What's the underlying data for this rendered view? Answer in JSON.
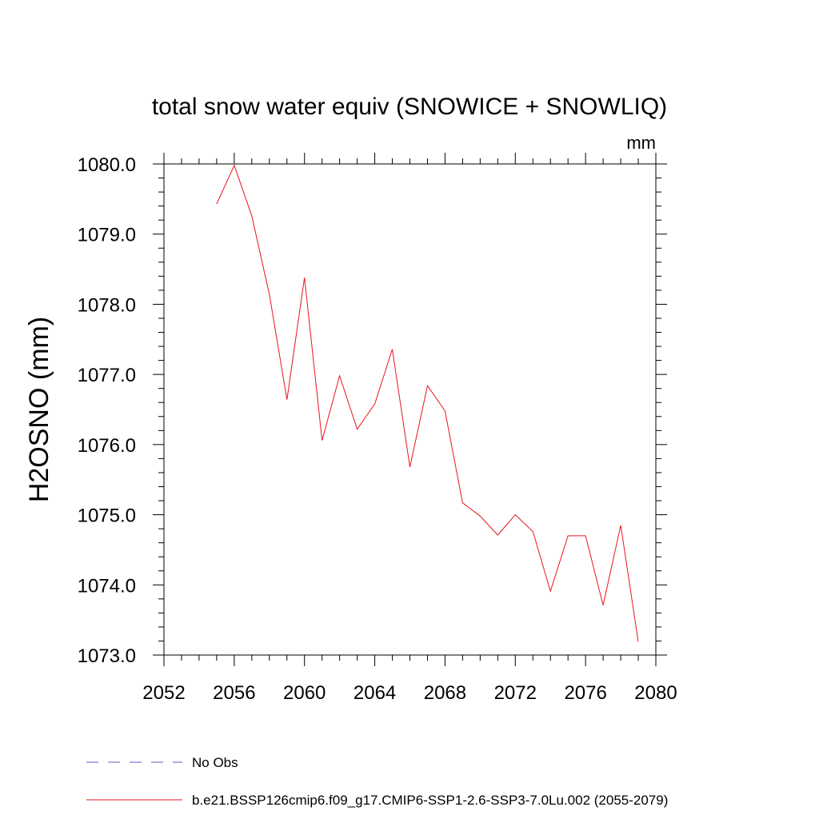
{
  "chart_data": {
    "type": "line",
    "title": "total snow water equiv (SNOWICE + SNOWLIQ)",
    "units_label": "mm",
    "ylabel": "H2OSNO  (mm)",
    "xlabel": "",
    "xlim": [
      2052,
      2080
    ],
    "ylim": [
      1073.0,
      1080.0
    ],
    "x_ticks": [
      2052,
      2056,
      2060,
      2064,
      2068,
      2072,
      2076,
      2080
    ],
    "x_tick_labels": [
      "2052",
      "2056",
      "2060",
      "2064",
      "2068",
      "2072",
      "2076",
      "2080"
    ],
    "y_ticks": [
      1073.0,
      1074.0,
      1075.0,
      1076.0,
      1077.0,
      1078.0,
      1079.0,
      1080.0
    ],
    "y_tick_labels": [
      "1073.0",
      "1074.0",
      "1075.0",
      "1076.0",
      "1077.0",
      "1078.0",
      "1079.0",
      "1080.0"
    ],
    "grid": false,
    "series": [
      {
        "name": "b.e21.BSSP126cmip6.f09_g17.CMIP6-SSP1-2.6-SSP3-7.0Lu.002 (2055-2079)",
        "color": "#e8141c",
        "style": "solid",
        "x": [
          2055,
          2056,
          2057,
          2058,
          2059,
          2060,
          2061,
          2062,
          2063,
          2064,
          2065,
          2066,
          2067,
          2068,
          2069,
          2070,
          2071,
          2072,
          2073,
          2074,
          2075,
          2076,
          2077,
          2078,
          2079
        ],
        "values": [
          1079.43,
          1079.98,
          1079.26,
          1078.14,
          1076.64,
          1078.38,
          1076.06,
          1076.98,
          1076.22,
          1076.58,
          1077.36,
          1075.68,
          1076.84,
          1076.48,
          1075.17,
          1074.98,
          1074.71,
          1075.0,
          1074.76,
          1073.91,
          1074.7,
          1074.7,
          1073.71,
          1074.85,
          1073.19
        ]
      }
    ],
    "legend": [
      {
        "label": "No Obs",
        "color": "#6a5acd",
        "style": "dashed"
      },
      {
        "label": "b.e21.BSSP126cmip6.f09_g17.CMIP6-SSP1-2.6-SSP3-7.0Lu.002 (2055-2079)",
        "color": "#e8141c",
        "style": "solid"
      }
    ]
  }
}
